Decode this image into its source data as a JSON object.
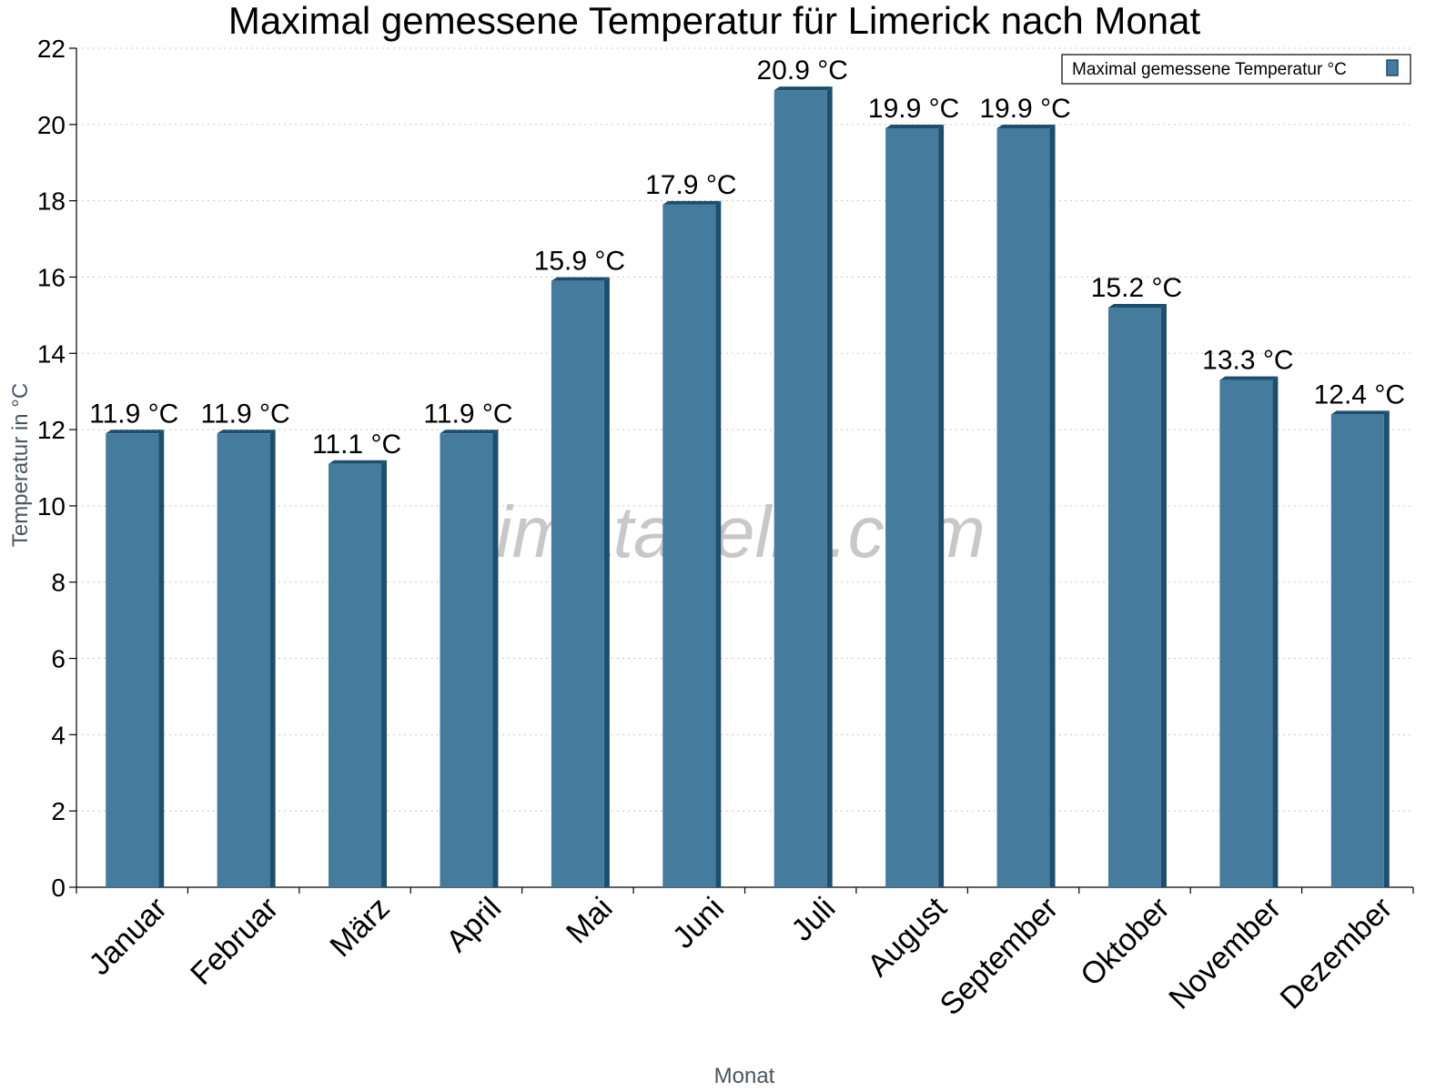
{
  "chart_data": {
    "type": "bar",
    "title": "Maximal gemessene Temperatur für Limerick nach Monat",
    "xlabel": "Monat",
    "ylabel": "Temperatur in °C",
    "categories": [
      "Januar",
      "Februar",
      "März",
      "April",
      "Mai",
      "Juni",
      "Juli",
      "August",
      "September",
      "Oktober",
      "November",
      "Dezember"
    ],
    "series": [
      {
        "name": "Maximal gemessene Temperatur °C",
        "values": [
          11.9,
          11.9,
          11.1,
          11.9,
          15.9,
          17.9,
          20.9,
          19.9,
          19.9,
          15.2,
          13.3,
          12.4
        ],
        "labels": [
          "11.9 °C",
          "11.9 °C",
          "11.1 °C",
          "11.9 °C",
          "15.9 °C",
          "17.9 °C",
          "20.9 °C",
          "19.9 °C",
          "19.9 °C",
          "15.2 °C",
          "13.3 °C",
          "12.4 °C"
        ]
      }
    ],
    "ylim": [
      0,
      22
    ],
    "yticks": [
      0,
      2,
      4,
      6,
      8,
      10,
      12,
      14,
      16,
      18,
      20,
      22
    ],
    "grid": true,
    "legend_position": "top-right",
    "bar_color": "#457b9d",
    "bar_edge_color": "#1d4e6e",
    "watermark": "klimatabelle.com"
  }
}
